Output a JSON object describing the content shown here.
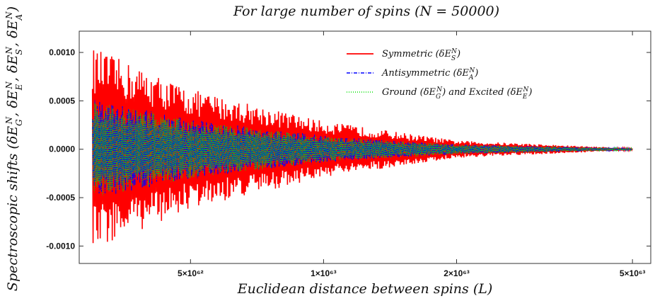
{
  "chart_data": {
    "type": "line",
    "title": "For large number of spins (N = 50000)",
    "xlabel": "Euclidean distance between spins (L)",
    "ylabel": "Spectroscopic shifts (δE_G^N, δE_E^N, δE_S^N, δE_A^N)",
    "xscale": "log",
    "xlim": [
      2.8e+62,
      5.5e+63
    ],
    "ylim": [
      -0.00118,
      0.00122
    ],
    "x_ticks": [
      {
        "value": 5e+62,
        "label": "5×10⁶²"
      },
      {
        "value": 1e+63,
        "label": "1×10⁶³"
      },
      {
        "value": 2e+63,
        "label": "2×10⁶³"
      },
      {
        "value": 5e+63,
        "label": "5×10⁶³"
      }
    ],
    "y_ticks": [
      {
        "value": 0.001,
        "label": "0.0010"
      },
      {
        "value": 0.0005,
        "label": "0.0005"
      },
      {
        "value": 0.0,
        "label": "0.0000"
      },
      {
        "value": -0.0005,
        "label": "-0.0005"
      },
      {
        "value": -0.001,
        "label": "-0.0010"
      }
    ],
    "series": [
      {
        "name": "Symmetric (δE_S^N)",
        "style": "solid",
        "color": "#ff0000",
        "x_start": 3e+62,
        "x_end": 5e+63,
        "envelope_x": [
          3e+62,
          5e+62,
          1e+63,
          2e+63,
          5e+63
        ],
        "envelope_amplitude": [
          0.00105,
          0.00062,
          0.00029,
          9e-05,
          1e-05
        ]
      },
      {
        "name": "Antisymmetric (δE_A^N)",
        "style": "dash-dot",
        "color": "#0000ff",
        "x_start": 3e+62,
        "x_end": 5e+63,
        "envelope_x": [
          3e+62,
          5e+62,
          1e+63,
          2e+63,
          5e+63
        ],
        "envelope_amplitude": [
          0.00052,
          0.00031,
          0.00014,
          5e-05,
          1e-05
        ]
      },
      {
        "name": "Ground (δE_G^N) and Excited (δE_E^N)",
        "style": "dotted",
        "color": "#00e000",
        "x_start": 3e+62,
        "x_end": 5e+63,
        "envelope_x": [
          3e+62,
          5e+62,
          1e+63,
          2e+63,
          5e+63
        ],
        "envelope_amplitude": [
          0.0005,
          0.0003,
          0.00013,
          5e-05,
          1e-05
        ]
      }
    ],
    "legend": {
      "placement": "top-right",
      "entries": [
        {
          "prefix": "Symmetric (δE",
          "sub": "S",
          "sup": "N",
          "suffix": ")"
        },
        {
          "prefix": "Antisymmetric (δE",
          "sub": "A",
          "sup": "N",
          "suffix": ")"
        },
        {
          "prefix": "Ground (δE",
          "sub": "G",
          "sup": "N",
          "middle": ") and Excited (δE",
          "sub2": "E",
          "sup2": "N",
          "suffix": ")"
        }
      ]
    }
  },
  "ylabel_parts": {
    "prefix": "Spectroscopic shifts (",
    "terms": [
      {
        "sub": "G",
        "sup": "N"
      },
      {
        "sub": "E",
        "sup": "N"
      },
      {
        "sub": "S",
        "sup": "N"
      },
      {
        "sub": "A",
        "sup": "N"
      }
    ],
    "suffix": ")"
  }
}
